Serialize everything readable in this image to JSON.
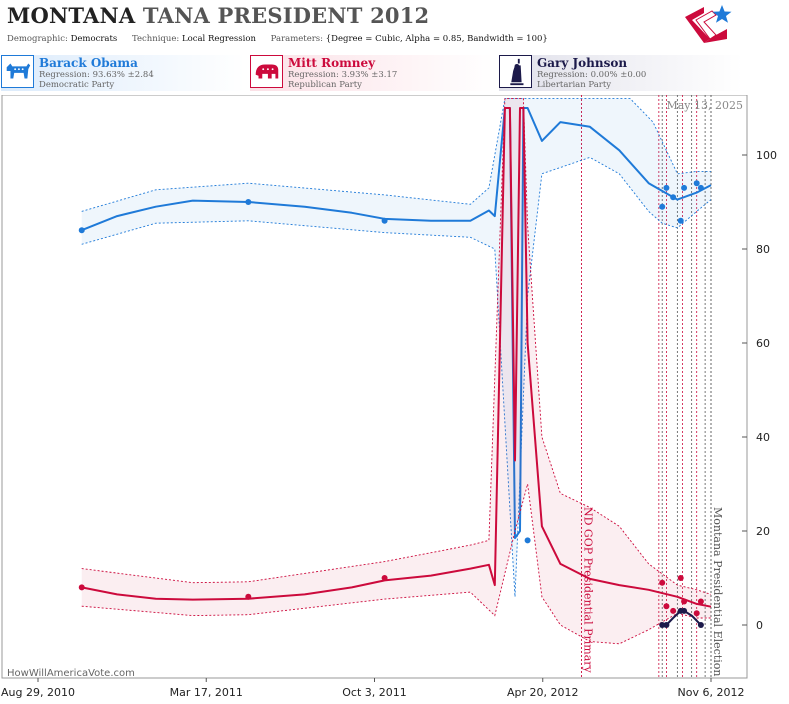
{
  "header": {
    "state": "MONTANA",
    "race": "TANA PRESIDENT 2012",
    "demographic_label": "Demographic:",
    "demographic_value": "Democrats",
    "technique_label": "Technique:",
    "technique_value": "Local Regression",
    "parameters_label": "Parameters:",
    "parameters_value": "{Degree = Cubic, Alpha = 0.85, Bandwidth = 100}"
  },
  "candidates": [
    {
      "name": "Barack Obama",
      "regression": "Regression: 93.63% ±2.84",
      "party": "Democratic Party",
      "color": "#1f7ad8",
      "icon": "donkey-icon"
    },
    {
      "name": "Mitt Romney",
      "regression": "Regression: 3.93% ±3.17",
      "party": "Republican Party",
      "color": "#cc0a3c",
      "icon": "elephant-icon"
    },
    {
      "name": "Gary Johnson",
      "regression": "Regression: 0.00% ±0.00",
      "party": "Libertarian Party",
      "color": "#1c1a4a",
      "icon": "statue-of-liberty-icon"
    }
  ],
  "chart_data": {
    "type": "line",
    "date_label": "May 13, 2025",
    "x_tick_labels": [
      "Aug 29, 2010",
      "Mar 17, 2011",
      "Oct 3, 2011",
      "Apr 20, 2012",
      "Nov 6, 2012"
    ],
    "x_range": [
      "2010-08-29",
      "2012-11-06"
    ],
    "y_ticks": [
      0,
      20,
      40,
      60,
      80,
      100
    ],
    "ylim": [
      -10,
      112
    ],
    "grid": false,
    "events": [
      {
        "date": "2012-06-05",
        "label": "ND GOP Presidential Primary"
      },
      {
        "date": "2012-11-06",
        "label": "Montana Presidential Election"
      }
    ],
    "event_marker_dates": [
      "2012-09-05",
      "2012-09-09",
      "2012-09-14",
      "2012-09-27",
      "2012-10-03",
      "2012-10-14",
      "2012-10-20",
      "2012-10-30"
    ],
    "series": [
      {
        "name": "Barack Obama",
        "color": "#1f7ad8",
        "points": [
          [
            "2010-10-20",
            84
          ],
          [
            "2011-05-06",
            90
          ],
          [
            "2011-10-15",
            86
          ],
          [
            "2012-04-02",
            18
          ],
          [
            "2012-09-09",
            89
          ],
          [
            "2012-09-14",
            93
          ],
          [
            "2012-09-22",
            91
          ],
          [
            "2012-10-01",
            86
          ],
          [
            "2012-10-05",
            93
          ],
          [
            "2012-10-20",
            94
          ],
          [
            "2012-10-25",
            93
          ]
        ],
        "trend": [
          [
            "2010-10-20",
            84
          ],
          [
            "2010-12-01",
            87
          ],
          [
            "2011-01-16",
            89
          ],
          [
            "2011-03-01",
            90.3
          ],
          [
            "2011-05-06",
            90
          ],
          [
            "2011-07-12",
            89
          ],
          [
            "2011-09-06",
            87.7
          ],
          [
            "2011-10-15",
            86.4
          ],
          [
            "2011-12-09",
            86
          ],
          [
            "2012-01-25",
            86
          ],
          [
            "2012-02-16",
            88.2
          ],
          [
            "2012-02-23",
            87
          ],
          [
            "2012-03-06",
            110
          ],
          [
            "2012-03-12",
            110
          ],
          [
            "2012-03-18",
            18.5
          ],
          [
            "2012-03-24",
            20
          ],
          [
            "2012-03-28",
            110
          ],
          [
            "2012-04-02",
            110
          ],
          [
            "2012-04-19",
            103
          ],
          [
            "2012-05-11",
            107
          ],
          [
            "2012-06-15",
            106
          ],
          [
            "2012-07-20",
            101
          ],
          [
            "2012-08-24",
            94
          ],
          [
            "2012-09-27",
            90.5
          ],
          [
            "2012-10-20",
            92
          ],
          [
            "2012-11-06",
            93.6
          ]
        ],
        "upper": [
          [
            "2010-10-20",
            88
          ],
          [
            "2011-01-16",
            92.6
          ],
          [
            "2011-05-06",
            94
          ],
          [
            "2011-10-15",
            91.5
          ],
          [
            "2012-01-25",
            89.5
          ],
          [
            "2012-02-16",
            93
          ],
          [
            "2012-03-06",
            112
          ],
          [
            "2012-04-19",
            112
          ],
          [
            "2012-06-15",
            112
          ],
          [
            "2012-08-02",
            112
          ],
          [
            "2012-08-29",
            107
          ],
          [
            "2012-09-27",
            96
          ],
          [
            "2012-10-20",
            96.5
          ],
          [
            "2012-11-06",
            96.5
          ]
        ],
        "lower": [
          [
            "2010-10-20",
            81
          ],
          [
            "2011-01-16",
            85.5
          ],
          [
            "2011-05-06",
            86
          ],
          [
            "2011-10-15",
            83.5
          ],
          [
            "2012-01-25",
            82.5
          ],
          [
            "2012-02-23",
            80
          ],
          [
            "2012-03-18",
            6
          ],
          [
            "2012-04-02",
            70
          ],
          [
            "2012-04-19",
            96
          ],
          [
            "2012-06-15",
            99.5
          ],
          [
            "2012-07-20",
            96
          ],
          [
            "2012-08-24",
            88
          ],
          [
            "2012-09-09",
            85.5
          ],
          [
            "2012-09-27",
            84.5
          ],
          [
            "2012-10-20",
            88
          ],
          [
            "2012-11-06",
            90.5
          ]
        ]
      },
      {
        "name": "Mitt Romney",
        "color": "#cc0a3c",
        "points": [
          [
            "2010-10-20",
            8
          ],
          [
            "2011-05-06",
            6
          ],
          [
            "2011-10-15",
            10
          ],
          [
            "2012-09-09",
            9
          ],
          [
            "2012-09-14",
            4
          ],
          [
            "2012-09-22",
            3
          ],
          [
            "2012-10-01",
            10
          ],
          [
            "2012-10-05",
            5
          ],
          [
            "2012-10-20",
            2.5
          ],
          [
            "2012-10-25",
            5
          ]
        ],
        "trend": [
          [
            "2010-10-20",
            8
          ],
          [
            "2010-12-01",
            6.5
          ],
          [
            "2011-01-16",
            5.6
          ],
          [
            "2011-03-01",
            5.4
          ],
          [
            "2011-05-06",
            5.6
          ],
          [
            "2011-07-12",
            6.5
          ],
          [
            "2011-09-06",
            8
          ],
          [
            "2011-10-15",
            9.5
          ],
          [
            "2011-12-09",
            10.5
          ],
          [
            "2012-01-25",
            12
          ],
          [
            "2012-02-16",
            12.8
          ],
          [
            "2012-02-23",
            8.5
          ],
          [
            "2012-03-06",
            110
          ],
          [
            "2012-03-12",
            110
          ],
          [
            "2012-03-18",
            35
          ],
          [
            "2012-03-24",
            110
          ],
          [
            "2012-03-28",
            110
          ],
          [
            "2012-04-02",
            60
          ],
          [
            "2012-04-19",
            21
          ],
          [
            "2012-05-11",
            13
          ],
          [
            "2012-06-15",
            9.8
          ],
          [
            "2012-07-20",
            8.5
          ],
          [
            "2012-08-24",
            7.5
          ],
          [
            "2012-09-27",
            6
          ],
          [
            "2012-10-20",
            4.5
          ],
          [
            "2012-11-06",
            3.9
          ]
        ],
        "upper": [
          [
            "2010-10-20",
            12
          ],
          [
            "2011-03-01",
            9
          ],
          [
            "2011-05-06",
            9.2
          ],
          [
            "2011-10-15",
            13.5
          ],
          [
            "2012-01-25",
            17
          ],
          [
            "2012-02-16",
            18
          ],
          [
            "2012-03-06",
            112
          ],
          [
            "2012-03-28",
            112
          ],
          [
            "2012-04-02",
            85
          ],
          [
            "2012-04-19",
            40
          ],
          [
            "2012-05-11",
            28
          ],
          [
            "2012-06-15",
            25
          ],
          [
            "2012-07-20",
            21
          ],
          [
            "2012-08-24",
            13
          ],
          [
            "2012-09-27",
            8.5
          ],
          [
            "2012-10-20",
            7.5
          ],
          [
            "2012-11-06",
            6.5
          ]
        ],
        "lower": [
          [
            "2010-10-20",
            4
          ],
          [
            "2011-03-01",
            2
          ],
          [
            "2011-05-06",
            2.2
          ],
          [
            "2011-10-15",
            5.5
          ],
          [
            "2012-01-25",
            7
          ],
          [
            "2012-02-23",
            2
          ],
          [
            "2012-03-18",
            20
          ],
          [
            "2012-04-02",
            30
          ],
          [
            "2012-04-19",
            6
          ],
          [
            "2012-05-11",
            0
          ],
          [
            "2012-06-15",
            -3.5
          ],
          [
            "2012-07-20",
            -4
          ],
          [
            "2012-08-24",
            -1
          ],
          [
            "2012-09-27",
            2.5
          ],
          [
            "2012-10-20",
            1.5
          ],
          [
            "2012-11-06",
            1.5
          ]
        ]
      },
      {
        "name": "Gary Johnson",
        "color": "#1c1a4a",
        "points": [
          [
            "2012-09-09",
            0
          ],
          [
            "2012-09-14",
            0
          ],
          [
            "2012-10-01",
            3
          ],
          [
            "2012-10-05",
            3
          ],
          [
            "2012-10-25",
            0
          ]
        ],
        "trend": [
          [
            "2012-09-09",
            0
          ],
          [
            "2012-09-14",
            0
          ],
          [
            "2012-09-22",
            1.5
          ],
          [
            "2012-10-01",
            3
          ],
          [
            "2012-10-05",
            3
          ],
          [
            "2012-10-14",
            2
          ],
          [
            "2012-10-25",
            0
          ]
        ]
      }
    ]
  },
  "footer": {
    "brand": "HowWillAmericaVote.com"
  }
}
